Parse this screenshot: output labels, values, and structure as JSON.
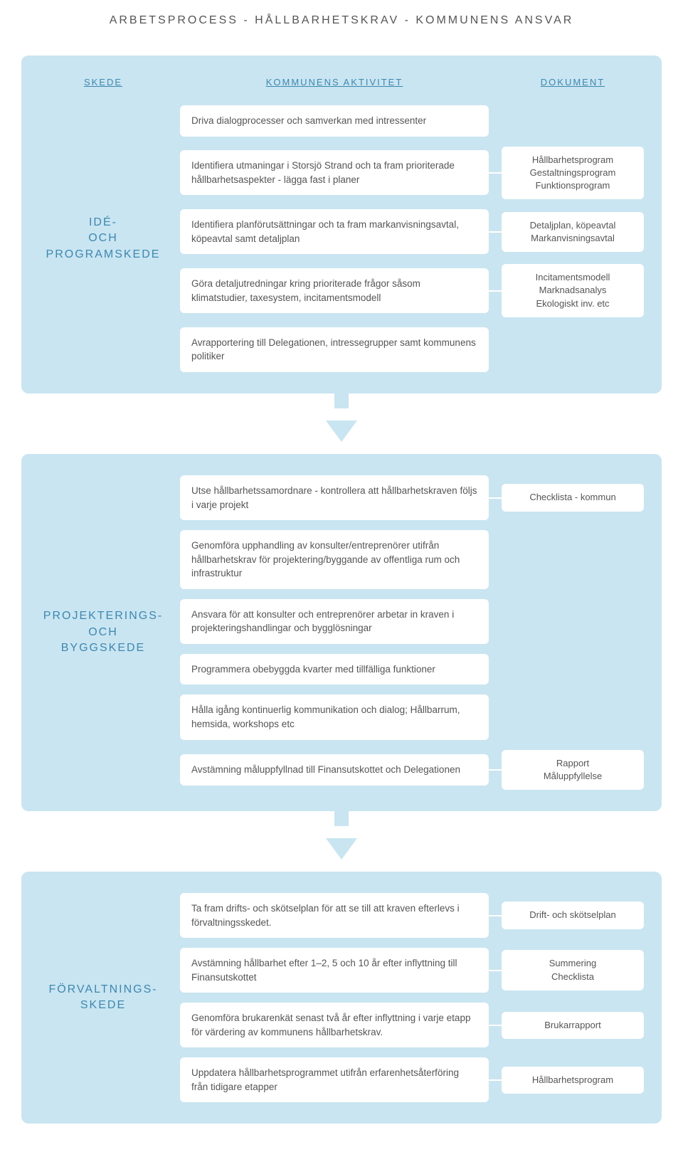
{
  "title": "ARBETSPROCESS - HÅLLBARHETSKRAV - KOMMUNENS ANSVAR",
  "headers": {
    "left": "SKEDE",
    "mid": "KOMMUNENS AKTIVITET",
    "right": "DOKUMENT"
  },
  "colors": {
    "panel_bg": "#c9e5f2",
    "card_bg": "#ffffff",
    "accent_text": "#3d88b0",
    "body_text": "#555555"
  },
  "phases": [
    {
      "label": "IDÉ- OCH PROGRAMSKEDE",
      "rows": [
        {
          "activity": "Driva dialogprocesser och samverkan med intressenter",
          "document": null
        },
        {
          "activity": "Identifiera utmaningar i Storsjö Strand och ta fram prioriterade hållbarhetsaspekter - lägga fast i planer",
          "document": "Hållbarhetsprogram\nGestaltningsprogram\nFunktionsprogram"
        },
        {
          "activity": "Identifiera planförutsättningar och ta fram markanvisningsavtal, köpeavtal samt detaljplan",
          "document": "Detaljplan, köpeavtal\nMarkanvisningsavtal"
        },
        {
          "activity": "Göra detaljutredningar kring prioriterade frågor såsom klimatstudier, taxesystem, incitamentsmodell",
          "document": "Incitamentsmodell\nMarknadsanalys\nEkologiskt inv. etc"
        },
        {
          "activity": "Avrapportering till Delegationen, intressegrupper samt kommunens politiker",
          "document": null
        }
      ]
    },
    {
      "label": "PROJEKTERINGS- OCH BYGGSKEDE",
      "rows": [
        {
          "activity": "Utse hållbarhetssamordnare - kontrollera att hållbarhetskraven följs i varje projekt",
          "document": "Checklista - kommun"
        },
        {
          "activity": "Genomföra upphandling av konsulter/entreprenörer utifrån hållbarhetskrav för projektering/byggande av offentliga rum och infrastruktur",
          "document": null
        },
        {
          "activity": "Ansvara för att konsulter och entreprenörer arbetar in kraven i projekteringshandlingar och bygglösningar",
          "document": null
        },
        {
          "activity": "Programmera obebyggda kvarter med tillfälliga funktioner",
          "document": null
        },
        {
          "activity": "Hålla igång kontinuerlig kommunikation och dialog; Hållbarrum, hemsida, workshops etc",
          "document": null
        },
        {
          "activity": "Avstämning måluppfyllnad till Finansutskottet och Delegationen",
          "document": "Rapport\nMåluppfyllelse"
        }
      ]
    },
    {
      "label": "FÖRVALTNINGS-SKEDE",
      "rows": [
        {
          "activity": "Ta fram drifts- och skötselplan för att se till att kraven efterlevs i förvaltningsskedet.",
          "document": "Drift- och skötselplan"
        },
        {
          "activity": "Avstämning hållbarhet efter 1–2, 5 och 10 år efter inflyttning till Finansutskottet",
          "document": "Summering\nChecklista"
        },
        {
          "activity": "Genomföra brukarenkät senast två år efter inflyttning i varje etapp för värdering av kommunens hållbarhetskrav.",
          "document": "Brukarrapport"
        },
        {
          "activity": "Uppdatera hållbarhetsprogrammet utifrån erfarenhetsåterföring från tidigare etapper",
          "document": "Hållbarhetsprogram"
        }
      ]
    }
  ]
}
